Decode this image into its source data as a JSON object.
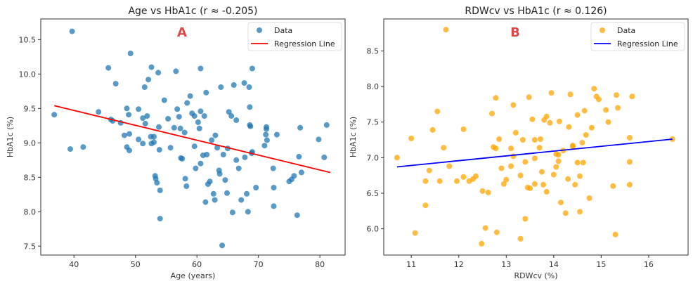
{
  "chart_data": [
    {
      "type": "scatter",
      "title": "Age vs HbA1c (r ≈ -0.205)",
      "annotation": "A",
      "xlabel": "Age (years)",
      "ylabel": "HbA1c (%)",
      "xlim": [
        34.6,
        84.1
      ],
      "ylim": [
        7.37,
        10.8
      ],
      "xticks": [
        40,
        50,
        60,
        70,
        80
      ],
      "yticks": [
        7.5,
        8.0,
        8.5,
        9.0,
        9.5,
        10.0,
        10.5
      ],
      "ytick_labels": [
        "7.5",
        "8.0",
        "8.5",
        "9.0",
        "9.5",
        "10.0",
        "10.5"
      ],
      "grid": false,
      "legend": {
        "position": "top-right",
        "entries": [
          {
            "label": "Data",
            "kind": "marker"
          },
          {
            "label": "Regression Line",
            "kind": "line"
          }
        ]
      },
      "colors": {
        "points": "#1f77b4",
        "line": "#ff0000"
      },
      "regression": {
        "x": [
          36.8,
          81.7
        ],
        "y": [
          9.54,
          8.57
        ]
      },
      "series": [
        {
          "name": "Data",
          "points": [
            [
              36.8,
              9.41
            ],
            [
              39.4,
              8.91
            ],
            [
              39.7,
              10.62
            ],
            [
              41.5,
              8.94
            ],
            [
              44.0,
              9.45
            ],
            [
              45.6,
              10.09
            ],
            [
              46.0,
              9.34
            ],
            [
              46.3,
              9.32
            ],
            [
              46.8,
              9.86
            ],
            [
              47.6,
              9.29
            ],
            [
              48.2,
              9.11
            ],
            [
              48.6,
              9.5
            ],
            [
              48.6,
              8.94
            ],
            [
              48.9,
              9.41
            ],
            [
              49.0,
              9.13
            ],
            [
              49.2,
              10.3
            ],
            [
              49.0,
              8.89
            ],
            [
              50.5,
              9.05
            ],
            [
              50.5,
              9.49
            ],
            [
              51.2,
              8.99
            ],
            [
              51.2,
              9.36
            ],
            [
              51.6,
              9.28
            ],
            [
              51.5,
              9.81
            ],
            [
              51.9,
              9.39
            ],
            [
              52.1,
              9.92
            ],
            [
              52.6,
              10.1
            ],
            [
              52.5,
              9.09
            ],
            [
              52.6,
              8.99
            ],
            [
              53.0,
              9.09
            ],
            [
              53.0,
              9.01
            ],
            [
              53.2,
              8.52
            ],
            [
              53.3,
              8.48
            ],
            [
              53.5,
              8.42
            ],
            [
              53.7,
              10.02
            ],
            [
              53.8,
              9.23
            ],
            [
              53.9,
              8.9
            ],
            [
              54.0,
              8.31
            ],
            [
              54.0,
              7.9
            ],
            [
              54.7,
              9.62
            ],
            [
              55.3,
              9.35
            ],
            [
              55.7,
              8.93
            ],
            [
              56.3,
              9.22
            ],
            [
              56.6,
              10.04
            ],
            [
              56.8,
              9.49
            ],
            [
              57.1,
              9.38
            ],
            [
              57.3,
              9.21
            ],
            [
              57.4,
              8.78
            ],
            [
              57.6,
              8.77
            ],
            [
              58.0,
              9.15
            ],
            [
              58.1,
              8.48
            ],
            [
              58.3,
              8.37
            ],
            [
              58.4,
              9.58
            ],
            [
              58.9,
              9.68
            ],
            [
              59.2,
              9.43
            ],
            [
              59.6,
              9.39
            ],
            [
              59.6,
              8.95
            ],
            [
              59.8,
              8.63
            ],
            [
              60.2,
              9.3
            ],
            [
              60.4,
              9.21
            ],
            [
              60.6,
              8.7
            ],
            [
              60.6,
              9.46
            ],
            [
              60.6,
              10.08
            ],
            [
              61.0,
              8.82
            ],
            [
              61.2,
              9.39
            ],
            [
              61.4,
              8.14
            ],
            [
              61.5,
              9.73
            ],
            [
              61.6,
              8.83
            ],
            [
              61.8,
              8.4
            ],
            [
              62.1,
              8.44
            ],
            [
              62.4,
              9.04
            ],
            [
              62.7,
              8.26
            ],
            [
              62.9,
              8.17
            ],
            [
              63.0,
              9.11
            ],
            [
              63.3,
              8.93
            ],
            [
              63.6,
              8.6
            ],
            [
              63.7,
              8.55
            ],
            [
              63.9,
              9.81
            ],
            [
              64.1,
              7.51
            ],
            [
              64.3,
              8.83
            ],
            [
              64.6,
              8.46
            ],
            [
              64.9,
              8.27
            ],
            [
              65.0,
              8.92
            ],
            [
              65.2,
              9.45
            ],
            [
              65.6,
              9.39
            ],
            [
              65.8,
              7.99
            ],
            [
              66.0,
              9.84
            ],
            [
              66.4,
              8.75
            ],
            [
              66.4,
              9.33
            ],
            [
              66.8,
              8.63
            ],
            [
              67.2,
              8.17
            ],
            [
              67.7,
              9.87
            ],
            [
              67.8,
              8.79
            ],
            [
              68.1,
              8.26
            ],
            [
              68.3,
              8.0
            ],
            [
              68.5,
              9.81
            ],
            [
              68.6,
              9.52
            ],
            [
              68.6,
              9.26
            ],
            [
              68.7,
              9.24
            ],
            [
              68.9,
              8.85
            ],
            [
              69.0,
              10.08
            ],
            [
              69.0,
              8.87
            ],
            [
              69.6,
              8.35
            ],
            [
              71.3,
              9.2
            ],
            [
              71.3,
              9.23
            ],
            [
              71.2,
              9.12
            ],
            [
              71.4,
              9.04
            ],
            [
              71.0,
              8.96
            ],
            [
              72.4,
              8.63
            ],
            [
              72.5,
              8.35
            ],
            [
              72.5,
              8.08
            ],
            [
              73.0,
              9.12
            ],
            [
              75.0,
              8.44
            ],
            [
              75.4,
              8.47
            ],
            [
              75.8,
              8.52
            ],
            [
              76.3,
              7.95
            ],
            [
              76.6,
              8.8
            ],
            [
              76.8,
              9.22
            ],
            [
              77.0,
              8.57
            ],
            [
              81.1,
              9.26
            ],
            [
              80.7,
              8.79
            ],
            [
              79.8,
              9.05
            ]
          ]
        }
      ]
    },
    {
      "type": "scatter",
      "title": "RDWcv vs HbA1c (r ≈ 0.126)",
      "annotation": "B",
      "xlabel": "RDWcv (%)",
      "ylabel": "HbA1c (%)",
      "xlim": [
        10.42,
        16.83
      ],
      "ylim": [
        5.63,
        8.95
      ],
      "xticks": [
        11,
        12,
        13,
        14,
        15,
        16
      ],
      "yticks": [
        6.0,
        6.5,
        7.0,
        7.5,
        8.0,
        8.5
      ],
      "ytick_labels": [
        "6.0",
        "6.5",
        "7.0",
        "7.5",
        "8.0",
        "8.5"
      ],
      "grid": false,
      "legend": {
        "position": "top-right",
        "entries": [
          {
            "label": "Data",
            "kind": "marker"
          },
          {
            "label": "Regression Line",
            "kind": "line"
          }
        ]
      },
      "colors": {
        "points": "#ffa500",
        "line": "#0000ff"
      },
      "regression": {
        "x": [
          10.7,
          16.5
        ],
        "y": [
          6.87,
          7.26
        ]
      },
      "series": [
        {
          "name": "Data",
          "points": [
            [
              10.7,
              7.0
            ],
            [
              11.08,
              5.94
            ],
            [
              11.0,
              7.27
            ],
            [
              11.3,
              6.67
            ],
            [
              11.3,
              6.33
            ],
            [
              11.38,
              6.82
            ],
            [
              11.45,
              7.39
            ],
            [
              11.55,
              7.65
            ],
            [
              11.6,
              6.67
            ],
            [
              11.73,
              8.8
            ],
            [
              11.68,
              7.14
            ],
            [
              11.8,
              6.88
            ],
            [
              11.96,
              6.67
            ],
            [
              12.1,
              7.4
            ],
            [
              12.1,
              6.73
            ],
            [
              12.22,
              6.67
            ],
            [
              12.3,
              6.7
            ],
            [
              12.36,
              6.74
            ],
            [
              12.48,
              5.79
            ],
            [
              12.5,
              6.53
            ],
            [
              12.56,
              6.01
            ],
            [
              12.62,
              6.51
            ],
            [
              12.7,
              7.62
            ],
            [
              12.73,
              7.15
            ],
            [
              12.78,
              7.84
            ],
            [
              12.78,
              7.13
            ],
            [
              12.8,
              5.95
            ],
            [
              12.85,
              7.26
            ],
            [
              12.9,
              6.85
            ],
            [
              12.95,
              6.63
            ],
            [
              13.0,
              6.69
            ],
            [
              13.1,
              7.13
            ],
            [
              13.1,
              6.88
            ],
            [
              13.15,
              7.74
            ],
            [
              13.15,
              7.02
            ],
            [
              13.2,
              7.35
            ],
            [
              13.3,
              6.75
            ],
            [
              13.3,
              5.86
            ],
            [
              13.35,
              7.25
            ],
            [
              13.4,
              6.94
            ],
            [
              13.4,
              6.14
            ],
            [
              13.45,
              6.58
            ],
            [
              13.48,
              7.85
            ],
            [
              13.5,
              6.57
            ],
            [
              13.55,
              7.54
            ],
            [
              13.6,
              6.63
            ],
            [
              13.6,
              6.99
            ],
            [
              13.7,
              7.14
            ],
            [
              13.72,
              7.26
            ],
            [
              13.75,
              6.8
            ],
            [
              13.78,
              6.62
            ],
            [
              13.8,
              7.53
            ],
            [
              13.85,
              6.52
            ],
            [
              13.85,
              7.58
            ],
            [
              13.92,
              7.49
            ],
            [
              13.95,
              7.91
            ],
            [
              14.0,
              6.76
            ],
            [
              14.05,
              7.05
            ],
            [
              14.05,
              6.87
            ],
            [
              14.1,
              6.95
            ],
            [
              14.1,
              7.04
            ],
            [
              14.12,
              7.51
            ],
            [
              14.15,
              6.37
            ],
            [
              14.2,
              7.1
            ],
            [
              14.25,
              6.22
            ],
            [
              14.3,
              6.7
            ],
            [
              14.32,
              7.43
            ],
            [
              14.35,
              7.89
            ],
            [
              14.4,
              7.17
            ],
            [
              14.45,
              6.62
            ],
            [
              14.5,
              6.93
            ],
            [
              14.5,
              7.6
            ],
            [
              14.55,
              6.24
            ],
            [
              14.55,
              6.74
            ],
            [
              14.6,
              7.21
            ],
            [
              14.62,
              6.93
            ],
            [
              14.65,
              7.66
            ],
            [
              14.68,
              7.32
            ],
            [
              14.75,
              6.43
            ],
            [
              14.8,
              7.42
            ],
            [
              14.85,
              7.97
            ],
            [
              14.9,
              7.86
            ],
            [
              14.95,
              7.82
            ],
            [
              15.1,
              7.67
            ],
            [
              15.15,
              7.5
            ],
            [
              15.25,
              6.6
            ],
            [
              15.3,
              5.92
            ],
            [
              15.32,
              7.88
            ],
            [
              15.35,
              7.7
            ],
            [
              15.6,
              6.94
            ],
            [
              15.6,
              6.62
            ],
            [
              15.65,
              7.86
            ],
            [
              15.6,
              7.28
            ],
            [
              16.5,
              7.26
            ],
            [
              14.4,
              7.16
            ],
            [
              13.6,
              7.25
            ]
          ]
        }
      ]
    }
  ]
}
